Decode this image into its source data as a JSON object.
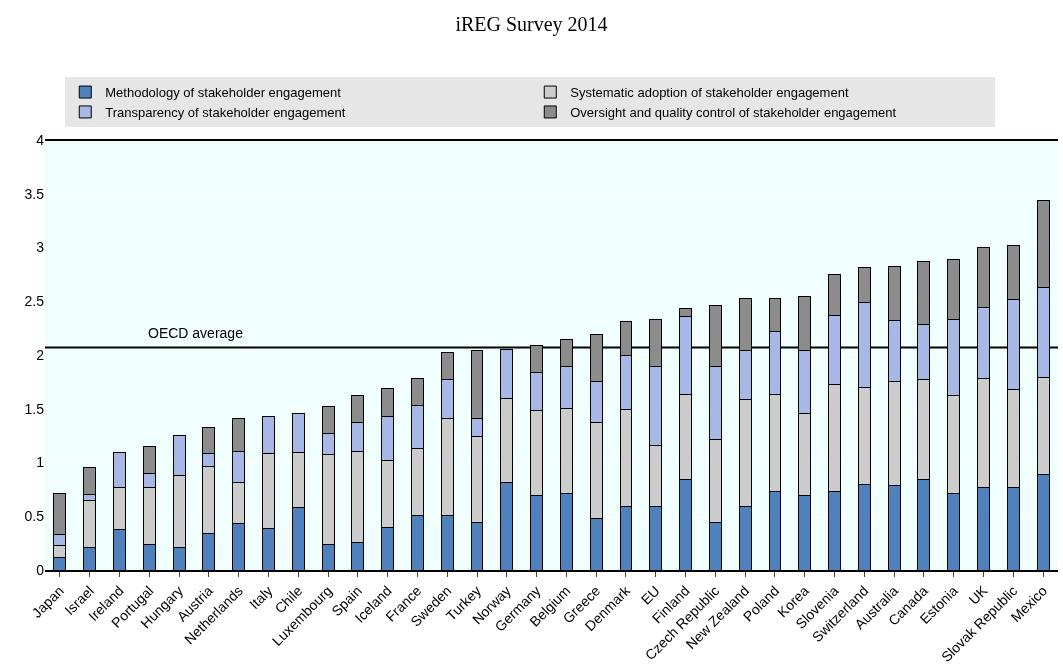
{
  "chart_data": {
    "type": "bar",
    "stacked": true,
    "title": "iREG Survey 2014",
    "categories": [
      "Japan",
      "Israel",
      "Ireland",
      "Portugal",
      "Hungary",
      "Austria",
      "Netherlands",
      "Italy",
      "Chile",
      "Luxembourg",
      "Spain",
      "Iceland",
      "France",
      "Sweden",
      "Turkey",
      "Norway",
      "Germany",
      "Belgium",
      "Greece",
      "Denmark",
      "EU",
      "Finland",
      "Czech Republic",
      "New Zealand",
      "Poland",
      "Korea",
      "Slovenia",
      "Switzerland",
      "Australia",
      "Canada",
      "Estonia",
      "UK",
      "Slovak Republic",
      "Mexico"
    ],
    "series": [
      {
        "name": "Methodology of stakeholder engagement",
        "color": "#4f81bd",
        "values": [
          0.12,
          0.21,
          0.38,
          0.24,
          0.21,
          0.34,
          0.43,
          0.39,
          0.58,
          0.24,
          0.26,
          0.4,
          0.51,
          0.51,
          0.44,
          0.81,
          0.69,
          0.71,
          0.48,
          0.59,
          0.59,
          0.84,
          0.44,
          0.59,
          0.73,
          0.69,
          0.73,
          0.8,
          0.79,
          0.84,
          0.71,
          0.77,
          0.77,
          0.89
        ]
      },
      {
        "name": "Systematic adoption of stakeholder engagement",
        "color": "#cccccc",
        "values": [
          0.11,
          0.44,
          0.39,
          0.53,
          0.67,
          0.62,
          0.38,
          0.69,
          0.51,
          0.83,
          0.84,
          0.62,
          0.62,
          0.9,
          0.8,
          0.79,
          0.79,
          0.79,
          0.89,
          0.9,
          0.57,
          0.79,
          0.77,
          1.0,
          0.9,
          0.77,
          1.0,
          0.9,
          0.96,
          0.93,
          0.91,
          1.01,
          0.91,
          0.9
        ]
      },
      {
        "name": "Transparency of stakeholder engagement",
        "color": "#a8b8e6",
        "values": [
          0.1,
          0.05,
          0.32,
          0.13,
          0.37,
          0.12,
          0.29,
          0.35,
          0.37,
          0.2,
          0.27,
          0.41,
          0.4,
          0.36,
          0.17,
          0.45,
          0.36,
          0.39,
          0.38,
          0.51,
          0.73,
          0.73,
          0.68,
          0.45,
          0.59,
          0.58,
          0.64,
          0.79,
          0.57,
          0.51,
          0.71,
          0.66,
          0.84,
          0.84
        ]
      },
      {
        "name": "Oversight and quality control of stakeholder engagement",
        "color": "#8c8c8c",
        "values": [
          0.38,
          0.25,
          null,
          0.25,
          null,
          0.25,
          0.31,
          null,
          null,
          0.25,
          0.25,
          0.26,
          0.25,
          0.25,
          0.63,
          null,
          0.25,
          0.25,
          0.44,
          0.31,
          0.44,
          0.07,
          0.57,
          0.49,
          0.31,
          0.5,
          0.38,
          0.32,
          0.5,
          0.59,
          0.56,
          0.56,
          0.5,
          0.81
        ]
      }
    ],
    "ylim": [
      0,
      4
    ],
    "yticks": [
      0,
      0.5,
      1,
      1.5,
      2,
      2.5,
      3,
      3.5,
      4
    ],
    "ref_lines": [
      {
        "axis": "y",
        "value": 2.07,
        "label": "OECD average",
        "color": "#000000"
      }
    ],
    "grid": "y",
    "legend": "top"
  }
}
